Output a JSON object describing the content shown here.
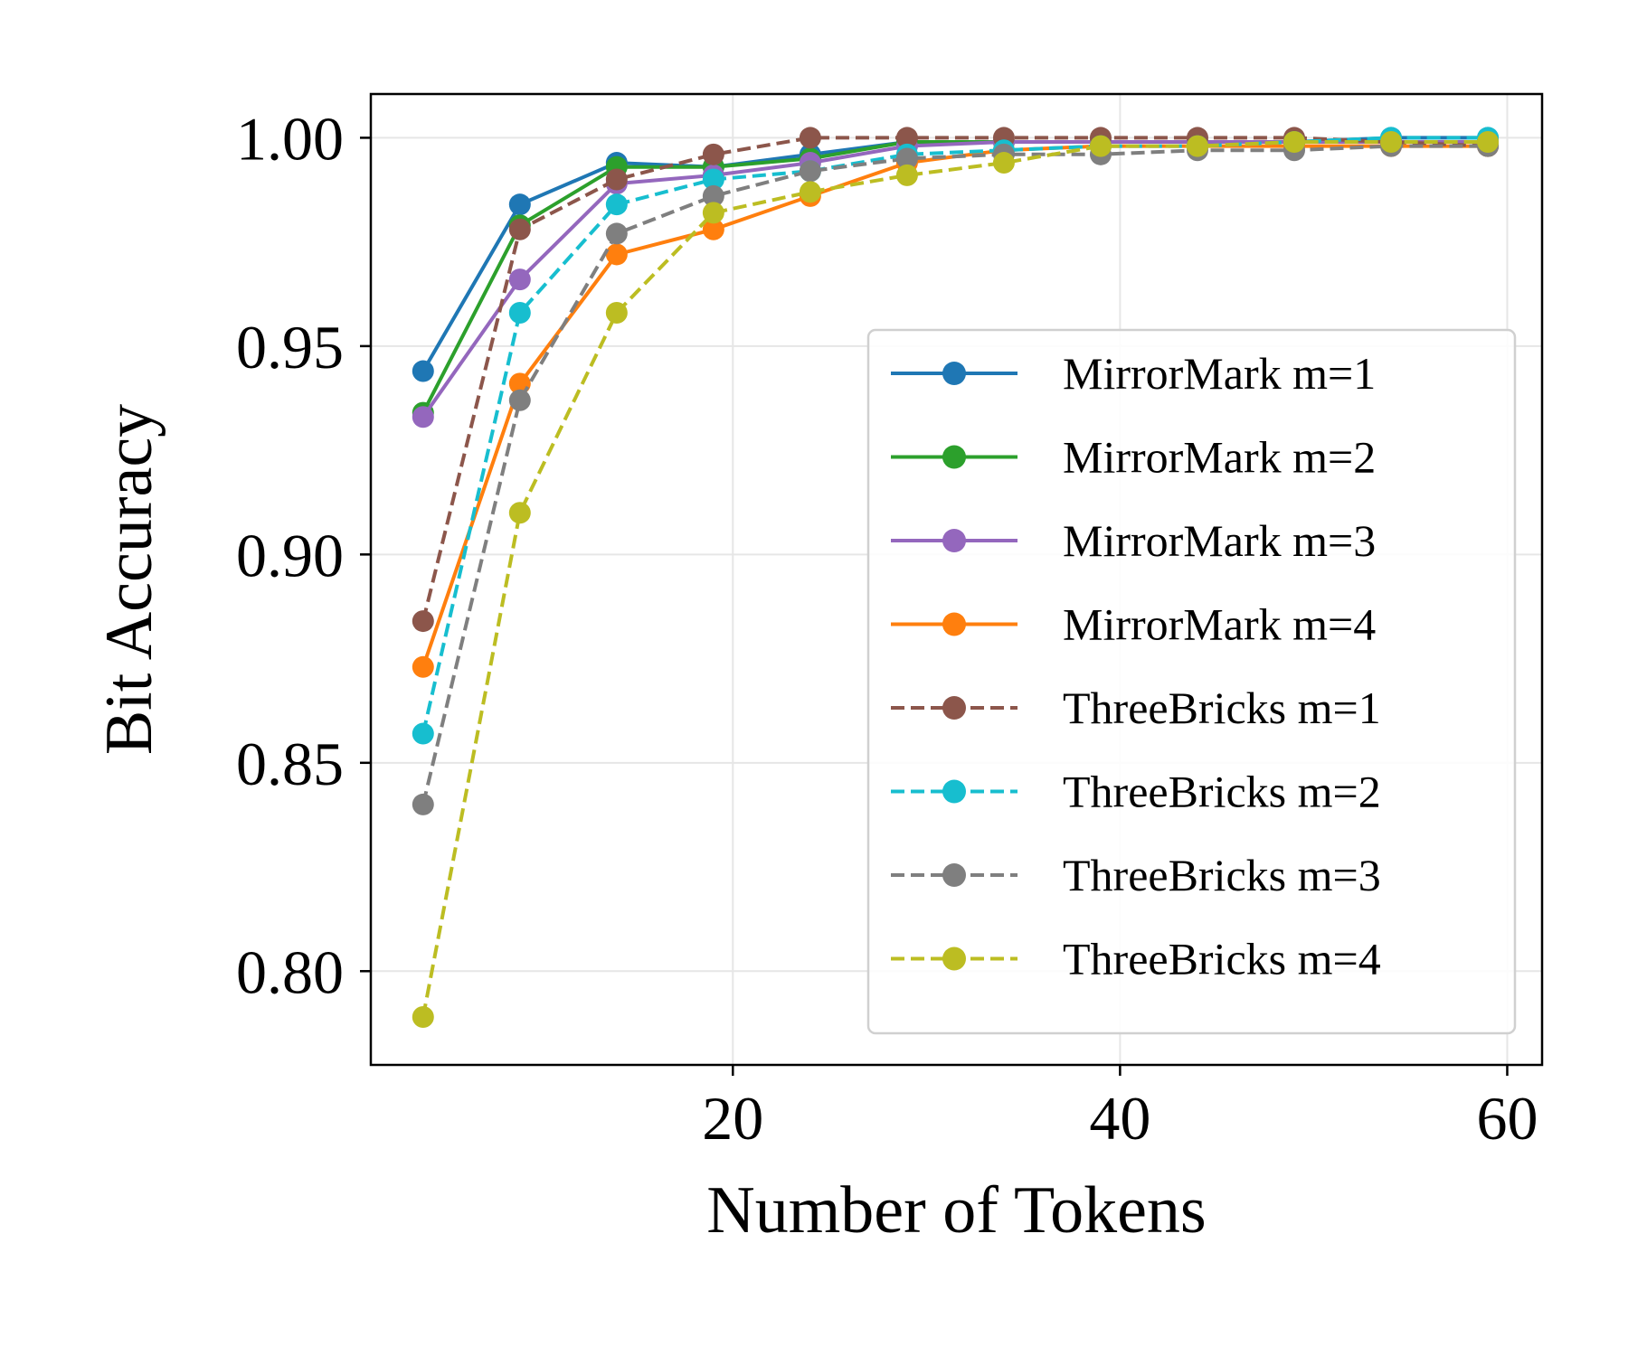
{
  "chart_data": {
    "type": "line",
    "title": "",
    "xlabel": "Number of Tokens",
    "ylabel": "Bit Accuracy",
    "xlim": [
      1.3,
      61.8
    ],
    "ylim": [
      0.7775,
      1.0105
    ],
    "xticks": [
      20,
      40,
      60
    ],
    "xtick_labels": [
      "20",
      "40",
      "60"
    ],
    "yticks": [
      0.8,
      0.85,
      0.9,
      0.95,
      1.0
    ],
    "ytick_labels": [
      "0.80",
      "0.85",
      "0.90",
      "0.95",
      "1.00"
    ],
    "grid": true,
    "legend_position": "lower-right",
    "x": [
      4,
      9,
      14,
      19,
      24,
      29,
      34,
      39,
      44,
      49,
      54,
      59
    ],
    "series": [
      {
        "name": "MirrorMark m=1",
        "color": "#1f77b4",
        "dashed": false,
        "values": [
          0.944,
          0.984,
          0.994,
          0.993,
          0.996,
          0.999,
          0.999,
          0.999,
          0.999,
          0.999,
          1.0,
          1.0
        ]
      },
      {
        "name": "MirrorMark m=2",
        "color": "#2ca02c",
        "dashed": false,
        "values": [
          0.934,
          0.979,
          0.993,
          0.993,
          0.995,
          0.999,
          0.999,
          0.999,
          0.999,
          0.999,
          0.999,
          0.999
        ]
      },
      {
        "name": "MirrorMark m=3",
        "color": "#9467bd",
        "dashed": false,
        "values": [
          0.933,
          0.966,
          0.989,
          0.991,
          0.994,
          0.998,
          0.999,
          0.999,
          0.999,
          0.999,
          0.999,
          0.999
        ]
      },
      {
        "name": "MirrorMark m=4",
        "color": "#ff7f0e",
        "dashed": false,
        "values": [
          0.873,
          0.941,
          0.972,
          0.978,
          0.986,
          0.994,
          0.997,
          0.998,
          0.998,
          0.998,
          0.998,
          0.998
        ]
      },
      {
        "name": "ThreeBricks m=1",
        "color": "#8c564b",
        "dashed": true,
        "values": [
          0.884,
          0.978,
          0.99,
          0.996,
          1.0,
          1.0,
          1.0,
          1.0,
          1.0,
          1.0,
          0.999,
          0.998
        ]
      },
      {
        "name": "ThreeBricks m=2",
        "color": "#17becf",
        "dashed": true,
        "values": [
          0.857,
          0.958,
          0.984,
          0.99,
          0.992,
          0.996,
          0.997,
          0.998,
          0.998,
          0.999,
          1.0,
          1.0
        ]
      },
      {
        "name": "ThreeBricks m=3",
        "color": "#7f7f7f",
        "dashed": true,
        "values": [
          0.84,
          0.937,
          0.977,
          0.986,
          0.992,
          0.995,
          0.996,
          0.996,
          0.997,
          0.997,
          0.998,
          0.998
        ]
      },
      {
        "name": "ThreeBricks m=4",
        "color": "#bcbd22",
        "dashed": true,
        "values": [
          0.789,
          0.91,
          0.958,
          0.982,
          0.987,
          0.991,
          0.994,
          0.998,
          0.998,
          0.999,
          0.999,
          0.999
        ]
      }
    ]
  }
}
